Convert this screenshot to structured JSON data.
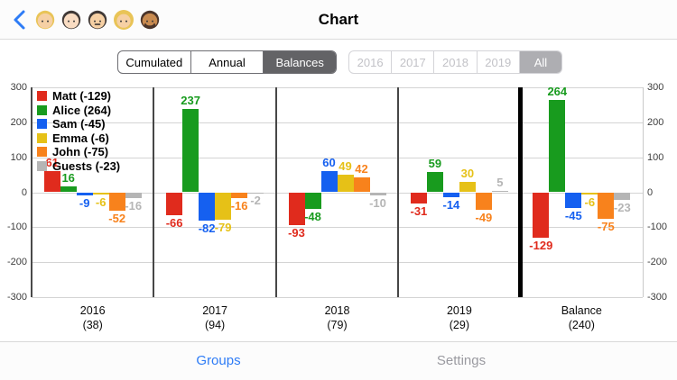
{
  "nav": {
    "title": "Chart",
    "back_icon": "chevron-left",
    "avatars": [
      {
        "emoji": "👱🏻",
        "skin": "#f6d0a4",
        "hair": "#e9c457",
        "mustache": false,
        "beard": false,
        "long": false
      },
      {
        "emoji": "👦🏻",
        "skin": "#f9dcc2",
        "hair": "#3f3835",
        "mustache": false,
        "beard": false,
        "long": false
      },
      {
        "emoji": "👨🏻",
        "skin": "#f6d0a4",
        "hair": "#3f3835",
        "mustache": true,
        "beard": false,
        "long": false
      },
      {
        "emoji": "👩🏼",
        "skin": "#f6d0a4",
        "hair": "#e9c457",
        "mustache": false,
        "beard": false,
        "long": true
      },
      {
        "emoji": "🧔🏽",
        "skin": "#c98b50",
        "hair": "#4a342a",
        "mustache": false,
        "beard": true,
        "long": false
      }
    ]
  },
  "controls": {
    "view_segments": {
      "options": [
        "Cumulated",
        "Annual",
        "Balances"
      ],
      "selected": 2
    },
    "year_segments": {
      "options": [
        "2016",
        "2017",
        "2018",
        "2019",
        "All"
      ],
      "selected": 4
    }
  },
  "chart_data": {
    "type": "bar",
    "title": "",
    "grid": true,
    "legend_position": "top-left",
    "ylim": [
      -300,
      300
    ],
    "yticks": [
      300,
      200,
      100,
      0,
      -100,
      -200,
      -300
    ],
    "categories": [
      {
        "label": "2016",
        "sublabel": "(38)"
      },
      {
        "label": "2017",
        "sublabel": "(94)"
      },
      {
        "label": "2018",
        "sublabel": "(79)"
      },
      {
        "label": "2019",
        "sublabel": "(29)"
      },
      {
        "label": "Balance",
        "sublabel": "(240)"
      }
    ],
    "thick_separator_before_last_category": true,
    "series": [
      {
        "name": "Matt (-129)",
        "color": "#e02b1d",
        "values": [
          61,
          -66,
          -93,
          -31,
          -129
        ]
      },
      {
        "name": "Alice (264)",
        "color": "#189b1e",
        "values": [
          16,
          237,
          -48,
          59,
          264
        ]
      },
      {
        "name": "Sam (-45)",
        "color": "#1560f0",
        "values": [
          -9,
          -82,
          60,
          -14,
          -45
        ]
      },
      {
        "name": "Emma (-6)",
        "color": "#e6c117",
        "values": [
          -6,
          -79,
          49,
          30,
          -6
        ]
      },
      {
        "name": "John (-75)",
        "color": "#f8821c",
        "values": [
          -52,
          -16,
          42,
          -49,
          -75
        ]
      },
      {
        "name": "Guests (-23)",
        "color": "#b5b5b5",
        "values": [
          -16,
          -2,
          -10,
          5,
          -23
        ]
      }
    ]
  },
  "tabbar": {
    "items": [
      {
        "label": "Groups",
        "active": true
      },
      {
        "label": "Settings",
        "active": false
      }
    ]
  },
  "colors": {
    "accent_blue": "#2e7cf6",
    "selected_segment_dark": "#636366",
    "selected_segment_gray": "#aeaeb2",
    "gridline": "#d4d4d4",
    "separator": "#474747",
    "thick_separator": "#000000"
  }
}
